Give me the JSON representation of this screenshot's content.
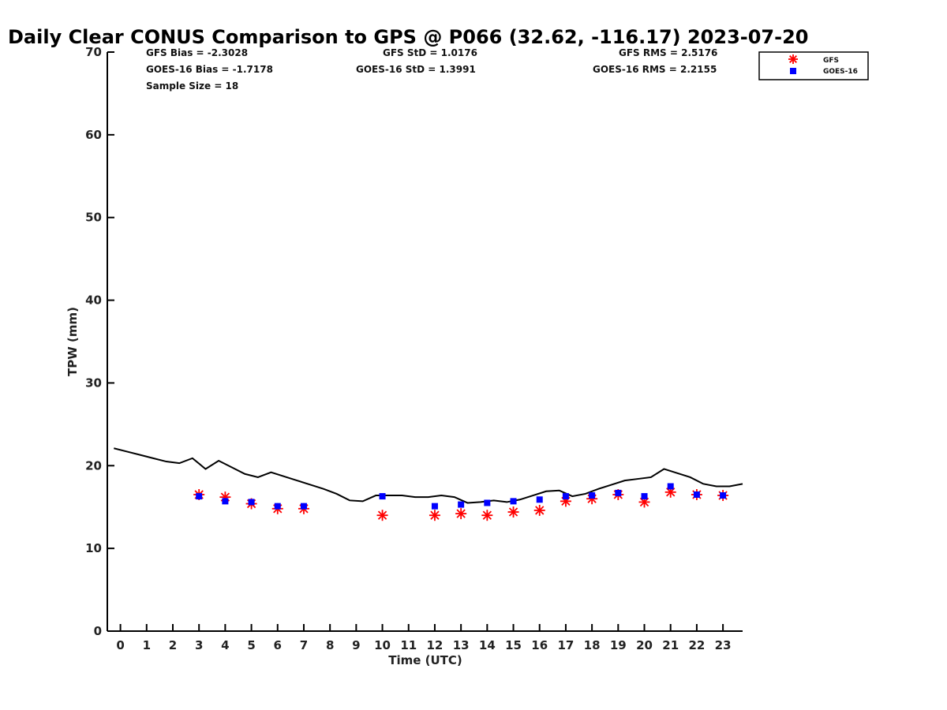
{
  "chart_data": {
    "type": "line",
    "title": "Daily Clear CONUS Comparison to GPS @ P066 (32.62, -116.17) 2023-07-20",
    "xlabel": "Time (UTC)",
    "ylabel": "TPW (mm)",
    "xlim": [
      -0.5,
      23.75
    ],
    "ylim": [
      0,
      70
    ],
    "xticks": [
      0,
      1,
      2,
      3,
      4,
      5,
      6,
      7,
      8,
      9,
      10,
      11,
      12,
      13,
      14,
      15,
      16,
      17,
      18,
      19,
      20,
      21,
      22,
      23
    ],
    "yticks": [
      0,
      10,
      20,
      30,
      40,
      50,
      60,
      70
    ],
    "grid": false,
    "legend_position": "top-right",
    "stats": {
      "gfs_bias": "GFS Bias = -2.3028",
      "goes_bias": "GOES-16 Bias = -1.7178",
      "sample_size": "Sample Size = 18",
      "gfs_std": "GFS StD = 1.0176",
      "goes_std": "GOES-16 StD = 1.3991",
      "gfs_rms": "GFS RMS = 2.5176",
      "goes_rms": "GOES-16 RMS = 2.2155"
    },
    "series": [
      {
        "name": "GPS",
        "style": "line",
        "color": "#000000",
        "x": [
          -0.25,
          0.25,
          0.75,
          1.25,
          1.75,
          2.25,
          2.75,
          3.25,
          3.75,
          4.25,
          4.75,
          5.25,
          5.75,
          6.25,
          6.75,
          7.25,
          7.75,
          8.25,
          8.75,
          9.25,
          9.75,
          10.25,
          10.75,
          11.25,
          11.75,
          12.25,
          12.75,
          13.25,
          13.75,
          14.25,
          14.75,
          15.25,
          15.75,
          16.25,
          16.75,
          17.25,
          17.75,
          18.25,
          18.75,
          19.25,
          19.75,
          20.25,
          20.75,
          21.25,
          21.75,
          22.25,
          22.75,
          23.25,
          23.75
        ],
        "y": [
          22.1,
          21.7,
          21.3,
          20.9,
          20.5,
          20.3,
          20.9,
          19.6,
          20.6,
          19.8,
          19.0,
          18.6,
          19.2,
          18.7,
          18.2,
          17.7,
          17.2,
          16.6,
          15.8,
          15.7,
          16.4,
          16.4,
          16.4,
          16.2,
          16.2,
          16.4,
          16.2,
          15.5,
          15.6,
          15.8,
          15.6,
          15.9,
          16.4,
          16.9,
          17.0,
          16.3,
          16.6,
          17.2,
          17.7,
          18.2,
          18.4,
          18.6,
          19.6,
          19.1,
          18.6,
          17.8,
          17.5,
          17.5,
          17.8
        ]
      },
      {
        "name": "GFS",
        "style": "asterisk",
        "color": "#ff0000",
        "x": [
          3,
          4,
          5,
          6,
          7,
          10,
          12,
          13,
          14,
          15,
          16,
          17,
          18,
          19,
          20,
          21,
          22,
          23
        ],
        "y": [
          16.5,
          16.2,
          15.4,
          14.8,
          14.8,
          14.0,
          14.0,
          14.2,
          14.0,
          14.4,
          14.6,
          15.7,
          16.0,
          16.5,
          15.6,
          16.8,
          16.5,
          16.4
        ]
      },
      {
        "name": "GOES-16",
        "style": "square",
        "color": "#0000ff",
        "x": [
          3,
          4,
          5,
          6,
          7,
          10,
          12,
          13,
          14,
          15,
          16,
          17,
          18,
          19,
          20,
          21,
          22,
          23
        ],
        "y": [
          16.3,
          15.7,
          15.6,
          15.1,
          15.1,
          16.3,
          15.1,
          15.3,
          15.5,
          15.7,
          15.9,
          16.3,
          16.4,
          16.7,
          16.3,
          17.5,
          16.5,
          16.4
        ]
      }
    ]
  }
}
